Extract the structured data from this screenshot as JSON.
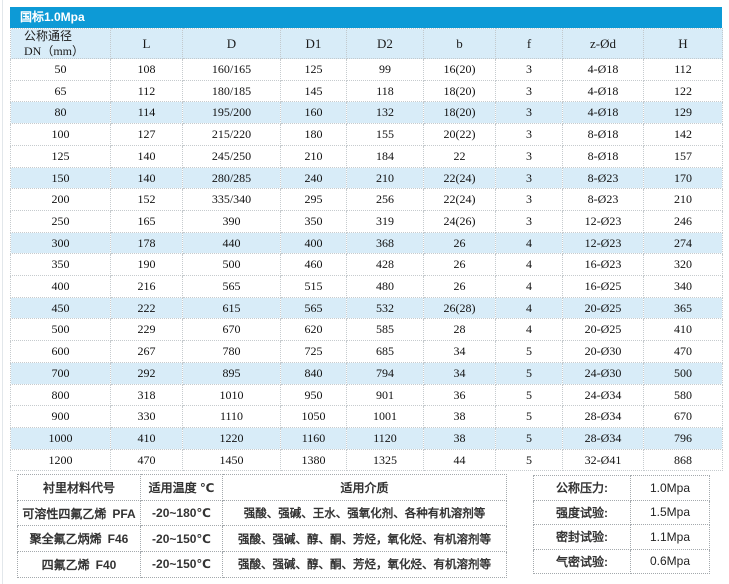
{
  "page": {
    "accent_color": "#0d9ad6",
    "highlight_color": "#d8ecf8"
  },
  "main_table": {
    "title": "国标1.0Mpa",
    "dn_header": {
      "line1": "公称通径",
      "line2": "DN（mm）"
    },
    "columns": [
      "L",
      "D",
      "D1",
      "D2",
      "b",
      "f",
      "z-Ød",
      "H"
    ],
    "rows": [
      [
        "50",
        "108",
        "160/165",
        "125",
        "99",
        "16(20)",
        "3",
        "4-Ø18",
        "112"
      ],
      [
        "65",
        "112",
        "180/185",
        "145",
        "118",
        "18(20)",
        "3",
        "4-Ø18",
        "122"
      ],
      [
        "80",
        "114",
        "195/200",
        "160",
        "132",
        "18(20)",
        "3",
        "4-Ø18",
        "129"
      ],
      [
        "100",
        "127",
        "215/220",
        "180",
        "155",
        "20(22)",
        "3",
        "8-Ø18",
        "142"
      ],
      [
        "125",
        "140",
        "245/250",
        "210",
        "184",
        "22",
        "3",
        "8-Ø18",
        "157"
      ],
      [
        "150",
        "140",
        "280/285",
        "240",
        "210",
        "22(24)",
        "3",
        "8-Ø23",
        "170"
      ],
      [
        "200",
        "152",
        "335/340",
        "295",
        "256",
        "22(24)",
        "3",
        "8-Ø23",
        "210"
      ],
      [
        "250",
        "165",
        "390",
        "350",
        "319",
        "24(26)",
        "3",
        "12-Ø23",
        "246"
      ],
      [
        "300",
        "178",
        "440",
        "400",
        "368",
        "26",
        "4",
        "12-Ø23",
        "274"
      ],
      [
        "350",
        "190",
        "500",
        "460",
        "428",
        "26",
        "4",
        "16-Ø23",
        "320"
      ],
      [
        "400",
        "216",
        "565",
        "515",
        "480",
        "26",
        "4",
        "16-Ø25",
        "340"
      ],
      [
        "450",
        "222",
        "615",
        "565",
        "532",
        "26(28)",
        "4",
        "20-Ø25",
        "365"
      ],
      [
        "500",
        "229",
        "670",
        "620",
        "585",
        "28",
        "4",
        "20-Ø25",
        "410"
      ],
      [
        "600",
        "267",
        "780",
        "725",
        "685",
        "34",
        "5",
        "20-Ø30",
        "470"
      ],
      [
        "700",
        "292",
        "895",
        "840",
        "794",
        "34",
        "5",
        "24-Ø30",
        "500"
      ],
      [
        "800",
        "318",
        "1010",
        "950",
        "901",
        "36",
        "5",
        "24-Ø34",
        "580"
      ],
      [
        "900",
        "330",
        "1110",
        "1050",
        "1001",
        "38",
        "5",
        "28-Ø34",
        "670"
      ],
      [
        "1000",
        "410",
        "1220",
        "1160",
        "1120",
        "38",
        "5",
        "28-Ø34",
        "796"
      ],
      [
        "1200",
        "470",
        "1450",
        "1380",
        "1325",
        "44",
        "5",
        "32-Ø41",
        "868"
      ]
    ],
    "highlighted_row_indexes": [
      2,
      5,
      8,
      11,
      14,
      17
    ]
  },
  "materials_table": {
    "headers": [
      "衬里材料代号",
      "适用温度 ℃",
      "适用介质"
    ],
    "rows": [
      {
        "material": "可溶性四氟乙烯",
        "code": "PFA",
        "temperature": "-20~180℃",
        "media": "强酸、强碱、王水、强氧化剂、各种有机溶剂等"
      },
      {
        "material": "聚全氟乙炳烯",
        "code": "F46",
        "temperature": "-20~150℃",
        "media": "强酸、强碱、醇、酮、芳烃，氧化烃、有机溶剂等"
      },
      {
        "material": "四氟乙烯",
        "code": "F40",
        "temperature": "-20~150℃",
        "media": "强酸、强碱、醇、酮、芳烃，氧化烃、有机溶剂等"
      }
    ]
  },
  "pressure_table": {
    "rows": [
      {
        "label": "公称压力:",
        "value": "1.0Mpa"
      },
      {
        "label": "强度试验:",
        "value": "1.5Mpa"
      },
      {
        "label": "密封试验:",
        "value": "1.1Mpa"
      },
      {
        "label": "气密试验:",
        "value": "0.6Mpa"
      }
    ]
  }
}
